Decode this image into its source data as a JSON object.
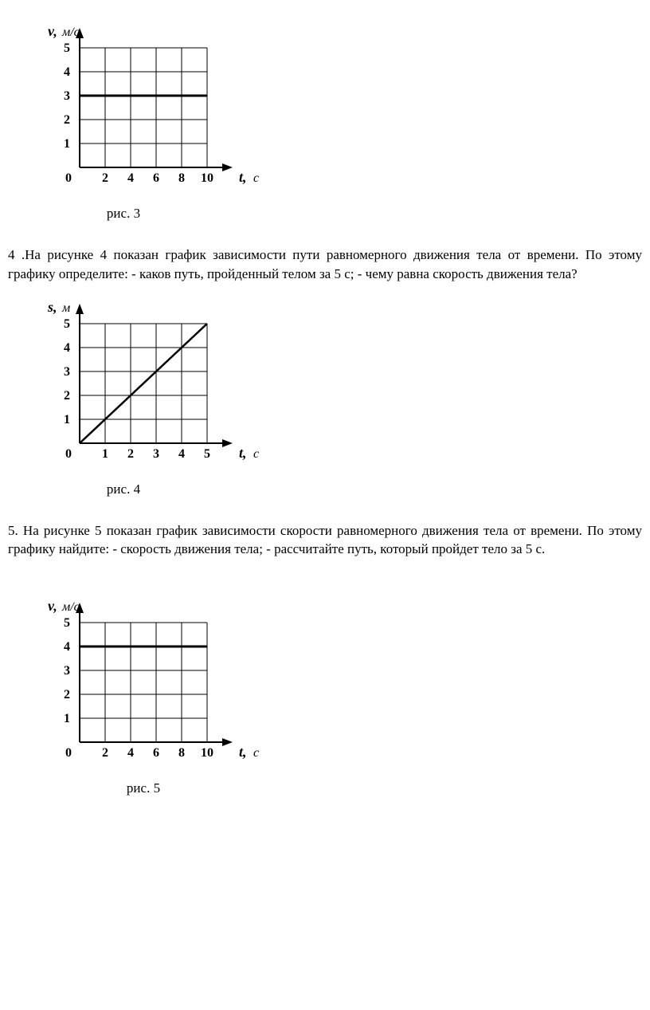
{
  "chart3": {
    "type": "line",
    "y_label": "v,",
    "y_unit": "м/с",
    "x_label": "t,",
    "x_unit": "с",
    "origin_label": "0",
    "x_ticks": [
      2,
      4,
      6,
      8,
      10
    ],
    "y_ticks": [
      1,
      2,
      3,
      4,
      5
    ],
    "xlim": [
      0,
      10
    ],
    "ylim": [
      0,
      5
    ],
    "data_line_y": 3,
    "data_line_x_range": [
      0,
      10
    ],
    "grid_color": "#000000",
    "line_color": "#000000",
    "background_color": "#ffffff",
    "grid_line_width": 1,
    "data_line_width": 3,
    "axis_line_width": 2,
    "caption": "рис. 3",
    "caption_width": 230
  },
  "problem4": {
    "text": "4 .На рисунке 4 показан график зависимости пути равномерного движения тела от времени. По этому графику определите: - каков путь, пройденный телом за 5 с; - чему равна скорость движения тела?"
  },
  "chart4": {
    "type": "line",
    "y_label": "s,",
    "y_unit": "м",
    "x_label": "t,",
    "x_unit": "с",
    "origin_label": "0",
    "x_ticks": [
      1,
      2,
      3,
      4,
      5
    ],
    "y_ticks": [
      1,
      2,
      3,
      4,
      5
    ],
    "xlim": [
      0,
      5
    ],
    "ylim": [
      0,
      5
    ],
    "data_points": [
      [
        0,
        0
      ],
      [
        5,
        5
      ]
    ],
    "grid_color": "#000000",
    "line_color": "#000000",
    "background_color": "#ffffff",
    "grid_line_width": 1,
    "data_line_width": 2.5,
    "axis_line_width": 2,
    "caption": "рис. 4",
    "caption_width": 230
  },
  "problem5": {
    "text": "5. На рисунке 5 показан график зависимости скорости равномерного движения тела от времени. По этому графику найдите: - скорость движения тела; - рассчитайте путь, который пройдет тело за 5 с."
  },
  "chart5": {
    "type": "line",
    "y_label": "v,",
    "y_unit": "м/с",
    "x_label": "t,",
    "x_unit": "с",
    "origin_label": "0",
    "x_ticks": [
      2,
      4,
      6,
      8,
      10
    ],
    "y_ticks": [
      1,
      2,
      3,
      4,
      5
    ],
    "xlim": [
      0,
      10
    ],
    "ylim": [
      0,
      5
    ],
    "data_line_y": 4,
    "data_line_x_range": [
      0,
      10
    ],
    "grid_color": "#000000",
    "line_color": "#000000",
    "background_color": "#ffffff",
    "grid_line_width": 1,
    "data_line_width": 3,
    "axis_line_width": 2,
    "caption": "рис. 5",
    "caption_width": 280
  }
}
